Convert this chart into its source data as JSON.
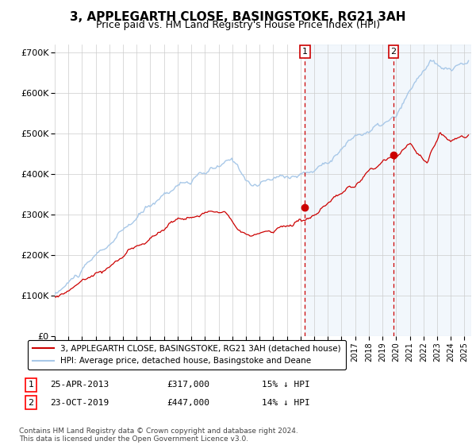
{
  "title": "3, APPLEGARTH CLOSE, BASINGSTOKE, RG21 3AH",
  "subtitle": "Price paid vs. HM Land Registry's House Price Index (HPI)",
  "ylabel_ticks": [
    "£0",
    "£100K",
    "£200K",
    "£300K",
    "£400K",
    "£500K",
    "£600K",
    "£700K"
  ],
  "ylim": [
    0,
    720000
  ],
  "xlim_start": 1995.0,
  "xlim_end": 2025.5,
  "hpi_color": "#a8c8e8",
  "hpi_fill_color": "#ddeeff",
  "price_color": "#cc0000",
  "marker1_date": 2013.32,
  "marker1_price": 317000,
  "marker1_label": "1",
  "marker2_date": 2019.81,
  "marker2_price": 447000,
  "marker2_label": "2",
  "legend_entries": [
    "3, APPLEGARTH CLOSE, BASINGSTOKE, RG21 3AH (detached house)",
    "HPI: Average price, detached house, Basingstoke and Deane"
  ],
  "table_rows": [
    [
      "1",
      "25-APR-2013",
      "£317,000",
      "15% ↓ HPI"
    ],
    [
      "2",
      "23-OCT-2019",
      "£447,000",
      "14% ↓ HPI"
    ]
  ],
  "footnote": "Contains HM Land Registry data © Crown copyright and database right 2024.\nThis data is licensed under the Open Government Licence v3.0.",
  "background_color": "#ffffff",
  "grid_color": "#cccccc",
  "title_fontsize": 11,
  "subtitle_fontsize": 9
}
